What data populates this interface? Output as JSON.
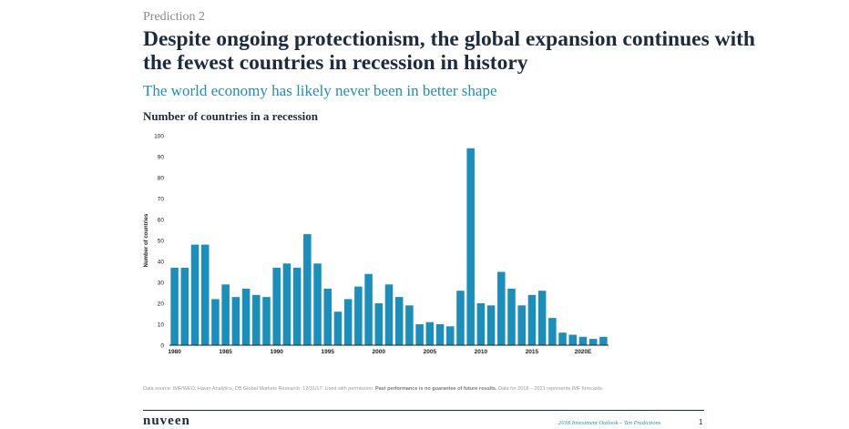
{
  "slide": {
    "kicker": "Prediction 2",
    "title": "Despite ongoing protectionism, the global expansion continues with the fewest countries in recession in history",
    "subtitle": "The world economy has likely never been in better shape",
    "chart_title": "Number of countries in a recession",
    "source_pre": "Data source: IMF/WEO, Haver Analytics, DB Global Markets Research, 12/31/17. Used with permission.",
    "source_bold": "Past performance is no guarantee of future results.",
    "source_post": "Data for 2018 – 2021 represents IMF forecasts.",
    "brand": "nuveen",
    "footer_text": "2018 Investment Outlook – Ten Predictions",
    "page_number": "1"
  },
  "colors": {
    "bar": "#1a8fbc",
    "axis": "#222222",
    "title": "#1c2b3d",
    "subtitle": "#1e8fb5"
  },
  "chart_data": {
    "type": "bar",
    "ylabel": "Number of countries",
    "ylim": [
      0,
      100
    ],
    "yticks": [
      0,
      10,
      20,
      30,
      40,
      50,
      60,
      70,
      80,
      90,
      100
    ],
    "xtick_labels": [
      "1980",
      "1985",
      "1990",
      "1995",
      "2000",
      "2005",
      "2010",
      "2015",
      "2020E"
    ],
    "categories": [
      "1980",
      "1981",
      "1982",
      "1983",
      "1984",
      "1985",
      "1986",
      "1987",
      "1988",
      "1989",
      "1990",
      "1991",
      "1992",
      "1993",
      "1994",
      "1995",
      "1996",
      "1997",
      "1998",
      "1999",
      "2000",
      "2001",
      "2002",
      "2003",
      "2004",
      "2005",
      "2006",
      "2007",
      "2008",
      "2009",
      "2010",
      "2011",
      "2012",
      "2013",
      "2014",
      "2015",
      "2016",
      "2017",
      "2018",
      "2019",
      "2020",
      "2021",
      "2022"
    ],
    "values": [
      37,
      37,
      48,
      48,
      22,
      29,
      23,
      27,
      24,
      23,
      37,
      39,
      37,
      53,
      39,
      27,
      16,
      22,
      28,
      34,
      20,
      29,
      23,
      19,
      10,
      11,
      10,
      9,
      26,
      94,
      20,
      19,
      35,
      27,
      19,
      24,
      26,
      13,
      6,
      5,
      4,
      3,
      4
    ],
    "grid": false,
    "legend": "none"
  }
}
